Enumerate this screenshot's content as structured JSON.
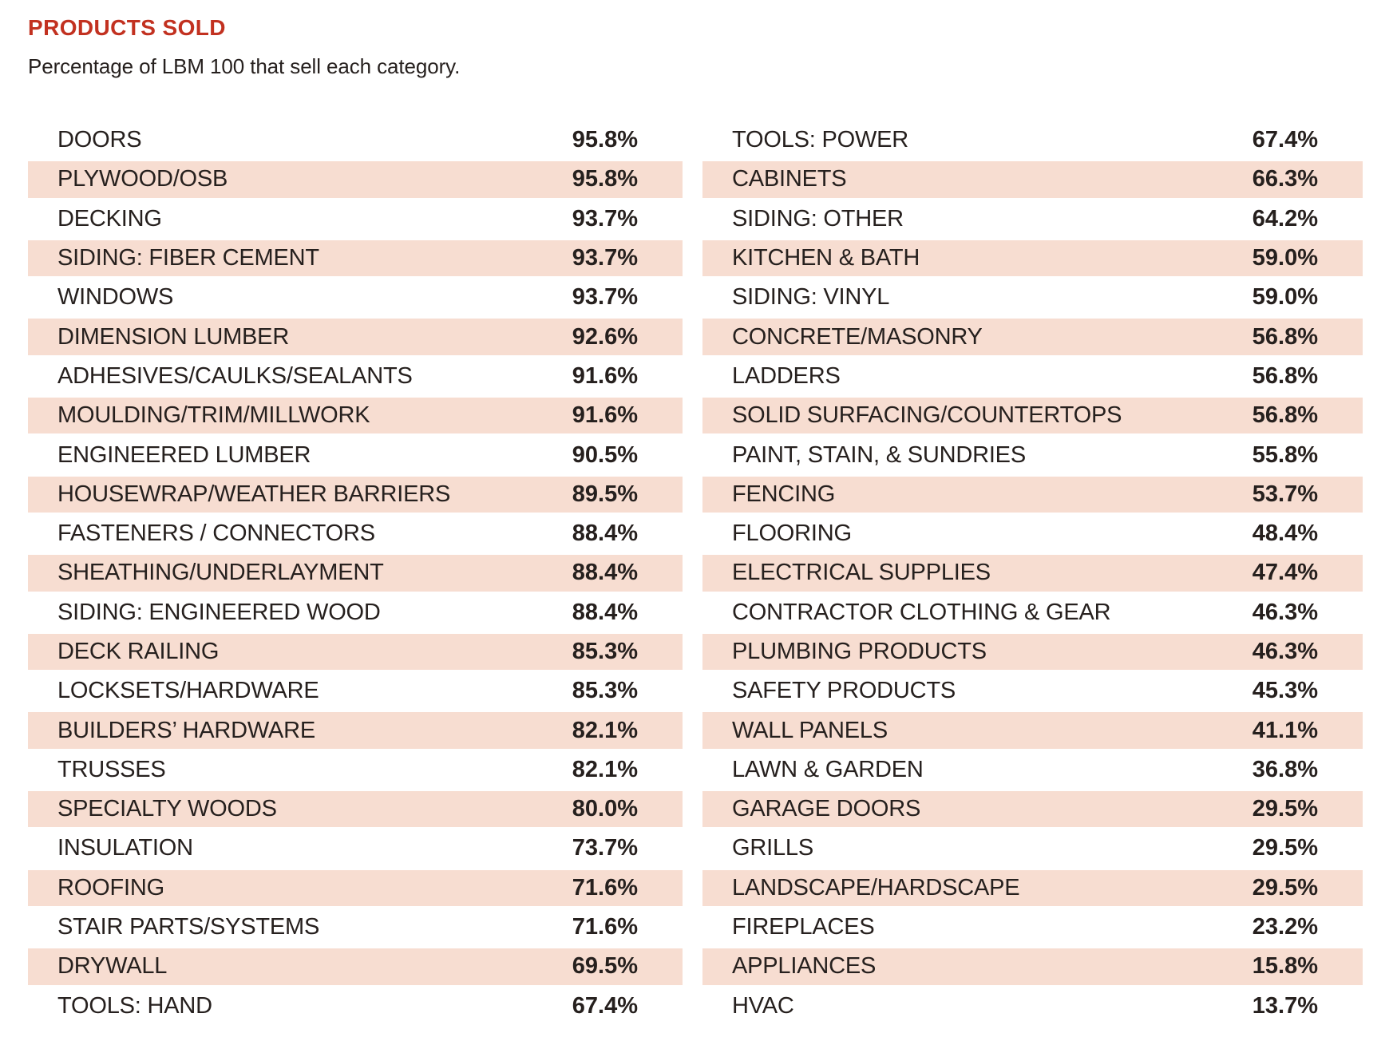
{
  "title": "PRODUCTS SOLD",
  "subtitle": "Percentage of LBM 100 that sell each category.",
  "colors": {
    "accent_red": "#c23120",
    "row_shade": "#f7ddd1",
    "text": "#26201e",
    "background": "#ffffff"
  },
  "chart_data": {
    "type": "table",
    "title": "PRODUCTS SOLD",
    "subtitle": "Percentage of LBM 100 that sell each category.",
    "unit": "%",
    "layout": "two columns, alternating rows shaded (2nd, 4th, ... of each column)",
    "columns": [
      {
        "rows": [
          {
            "label": "DOORS",
            "value": 95.8,
            "display": "95.8%"
          },
          {
            "label": "PLYWOOD/OSB",
            "value": 95.8,
            "display": "95.8%"
          },
          {
            "label": "DECKING",
            "value": 93.7,
            "display": "93.7%"
          },
          {
            "label": "SIDING: FIBER CEMENT",
            "value": 93.7,
            "display": "93.7%"
          },
          {
            "label": "WINDOWS",
            "value": 93.7,
            "display": "93.7%"
          },
          {
            "label": "DIMENSION LUMBER",
            "value": 92.6,
            "display": "92.6%"
          },
          {
            "label": "ADHESIVES/CAULKS/SEALANTS",
            "value": 91.6,
            "display": "91.6%"
          },
          {
            "label": "MOULDING/TRIM/MILLWORK",
            "value": 91.6,
            "display": "91.6%"
          },
          {
            "label": "ENGINEERED LUMBER",
            "value": 90.5,
            "display": "90.5%"
          },
          {
            "label": "HOUSEWRAP/WEATHER BARRIERS",
            "value": 89.5,
            "display": "89.5%"
          },
          {
            "label": "FASTENERS / CONNECTORS",
            "value": 88.4,
            "display": "88.4%"
          },
          {
            "label": "SHEATHING/UNDERLAYMENT",
            "value": 88.4,
            "display": "88.4%"
          },
          {
            "label": "SIDING: ENGINEERED WOOD",
            "value": 88.4,
            "display": "88.4%"
          },
          {
            "label": "DECK RAILING",
            "value": 85.3,
            "display": "85.3%"
          },
          {
            "label": "LOCKSETS/HARDWARE",
            "value": 85.3,
            "display": "85.3%"
          },
          {
            "label": "BUILDERS’ HARDWARE",
            "value": 82.1,
            "display": "82.1%"
          },
          {
            "label": "TRUSSES",
            "value": 82.1,
            "display": "82.1%"
          },
          {
            "label": "SPECIALTY WOODS",
            "value": 80.0,
            "display": "80.0%"
          },
          {
            "label": "INSULATION",
            "value": 73.7,
            "display": "73.7%"
          },
          {
            "label": "ROOFING",
            "value": 71.6,
            "display": "71.6%"
          },
          {
            "label": "STAIR PARTS/SYSTEMS",
            "value": 71.6,
            "display": "71.6%"
          },
          {
            "label": "DRYWALL",
            "value": 69.5,
            "display": "69.5%"
          },
          {
            "label": "TOOLS: HAND",
            "value": 67.4,
            "display": "67.4%"
          }
        ]
      },
      {
        "rows": [
          {
            "label": "TOOLS: POWER",
            "value": 67.4,
            "display": "67.4%"
          },
          {
            "label": "CABINETS",
            "value": 66.3,
            "display": "66.3%"
          },
          {
            "label": "SIDING: OTHER",
            "value": 64.2,
            "display": "64.2%"
          },
          {
            "label": "KITCHEN & BATH",
            "value": 59.0,
            "display": "59.0%"
          },
          {
            "label": "SIDING: VINYL",
            "value": 59.0,
            "display": "59.0%"
          },
          {
            "label": "CONCRETE/MASONRY",
            "value": 56.8,
            "display": "56.8%"
          },
          {
            "label": "LADDERS",
            "value": 56.8,
            "display": "56.8%"
          },
          {
            "label": "SOLID SURFACING/COUNTERTOPS",
            "value": 56.8,
            "display": "56.8%"
          },
          {
            "label": "PAINT, STAIN, & SUNDRIES",
            "value": 55.8,
            "display": "55.8%"
          },
          {
            "label": "FENCING",
            "value": 53.7,
            "display": "53.7%"
          },
          {
            "label": "FLOORING",
            "value": 48.4,
            "display": "48.4%"
          },
          {
            "label": "ELECTRICAL SUPPLIES",
            "value": 47.4,
            "display": "47.4%"
          },
          {
            "label": "CONTRACTOR CLOTHING & GEAR",
            "value": 46.3,
            "display": "46.3%"
          },
          {
            "label": "PLUMBING PRODUCTS",
            "value": 46.3,
            "display": "46.3%"
          },
          {
            "label": "SAFETY PRODUCTS",
            "value": 45.3,
            "display": "45.3%"
          },
          {
            "label": "WALL PANELS",
            "value": 41.1,
            "display": "41.1%"
          },
          {
            "label": "LAWN & GARDEN",
            "value": 36.8,
            "display": "36.8%"
          },
          {
            "label": "GARAGE DOORS",
            "value": 29.5,
            "display": "29.5%"
          },
          {
            "label": "GRILLS",
            "value": 29.5,
            "display": "29.5%"
          },
          {
            "label": "LANDSCAPE/HARDSCAPE",
            "value": 29.5,
            "display": "29.5%"
          },
          {
            "label": "FIREPLACES",
            "value": 23.2,
            "display": "23.2%"
          },
          {
            "label": "APPLIANCES",
            "value": 15.8,
            "display": "15.8%"
          },
          {
            "label": "HVAC",
            "value": 13.7,
            "display": "13.7%"
          }
        ]
      }
    ]
  }
}
